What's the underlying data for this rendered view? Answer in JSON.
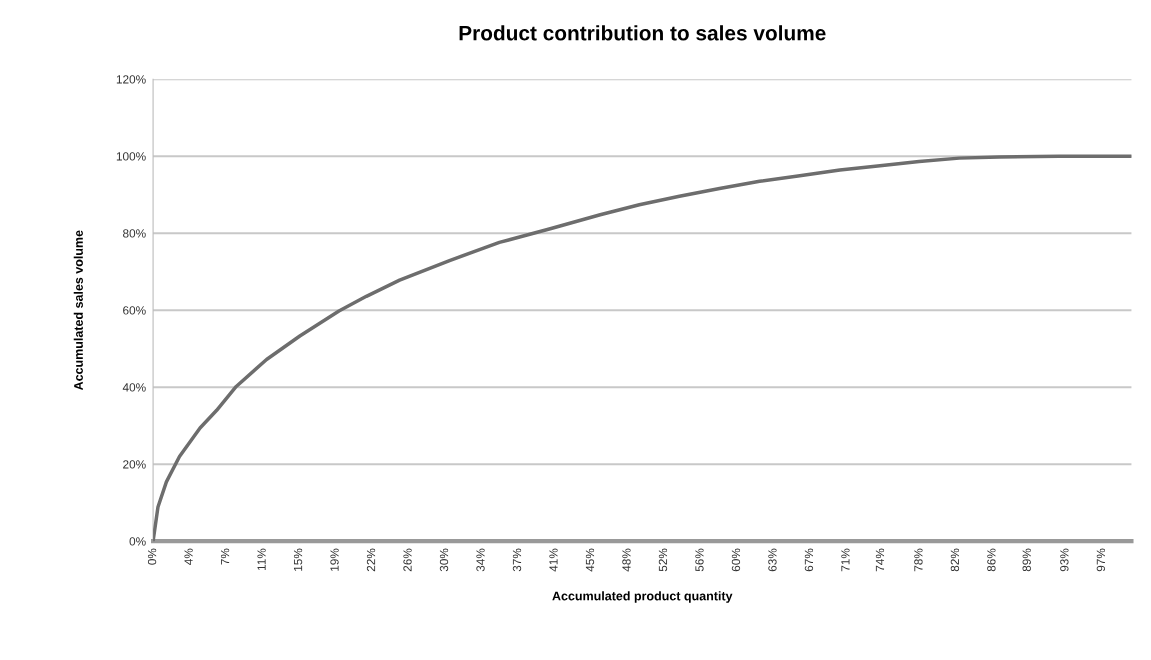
{
  "chart_data": {
    "type": "line",
    "title": "Product contribution to sales volume",
    "xlabel": "Accumulated product quantity",
    "ylabel": "Accumulated sales volume",
    "x": [
      0,
      0.5,
      1.36,
      2.7,
      4.8,
      6.5,
      8.5,
      11.6,
      15,
      19,
      21.8,
      25.2,
      30.3,
      35.4,
      40.5,
      45.7,
      49.7,
      53.8,
      57.9,
      62,
      66.1,
      70.2,
      74.3,
      78.3,
      82.4,
      86.5,
      92.6,
      100
    ],
    "series": [
      {
        "color": "#6d6d6d",
        "values": [
          0,
          8.9,
          15.4,
          22,
          29.4,
          34,
          40.2,
          47.2,
          53.3,
          59.8,
          63.6,
          67.8,
          72.9,
          77.6,
          81.1,
          84.8,
          87.4,
          89.6,
          91.6,
          93.5,
          94.9,
          96.4,
          97.5,
          98.6,
          99.5,
          99.8,
          100,
          100
        ]
      }
    ],
    "xlim": [
      0,
      100
    ],
    "xticks": [
      {
        "value": 0,
        "label": "0%"
      },
      {
        "value": 3.73,
        "label": "4%"
      },
      {
        "value": 7.46,
        "label": "7%"
      },
      {
        "value": 11.19,
        "label": "11%"
      },
      {
        "value": 14.92,
        "label": "15%"
      },
      {
        "value": 18.65,
        "label": "19%"
      },
      {
        "value": 22.38,
        "label": "22%"
      },
      {
        "value": 26.11,
        "label": "26%"
      },
      {
        "value": 29.84,
        "label": "30%"
      },
      {
        "value": 33.57,
        "label": "34%"
      },
      {
        "value": 37.3,
        "label": "37%"
      },
      {
        "value": 41.03,
        "label": "41%"
      },
      {
        "value": 44.76,
        "label": "45%"
      },
      {
        "value": 48.49,
        "label": "48%"
      },
      {
        "value": 52.22,
        "label": "52%"
      },
      {
        "value": 55.95,
        "label": "56%"
      },
      {
        "value": 59.68,
        "label": "60%"
      },
      {
        "value": 63.41,
        "label": "63%"
      },
      {
        "value": 67.14,
        "label": "67%"
      },
      {
        "value": 70.87,
        "label": "71%"
      },
      {
        "value": 74.4,
        "label": "74%"
      },
      {
        "value": 78.33,
        "label": "78%"
      },
      {
        "value": 82.06,
        "label": "82%"
      },
      {
        "value": 85.79,
        "label": "86%"
      },
      {
        "value": 89.4,
        "label": "89%"
      },
      {
        "value": 93.25,
        "label": "93%"
      },
      {
        "value": 96.98,
        "label": "97%"
      }
    ],
    "ylim": [
      0,
      120
    ],
    "yticks": [
      {
        "value": 0,
        "label": "0%"
      },
      {
        "value": 20,
        "label": "20%"
      },
      {
        "value": 40,
        "label": "40%"
      },
      {
        "value": 60,
        "label": "60%"
      },
      {
        "value": 80,
        "label": "80%"
      },
      {
        "value": 100,
        "label": "100%"
      },
      {
        "value": 120,
        "label": "120%"
      }
    ],
    "grid": "y",
    "marker": "none",
    "line_style": "solid"
  }
}
